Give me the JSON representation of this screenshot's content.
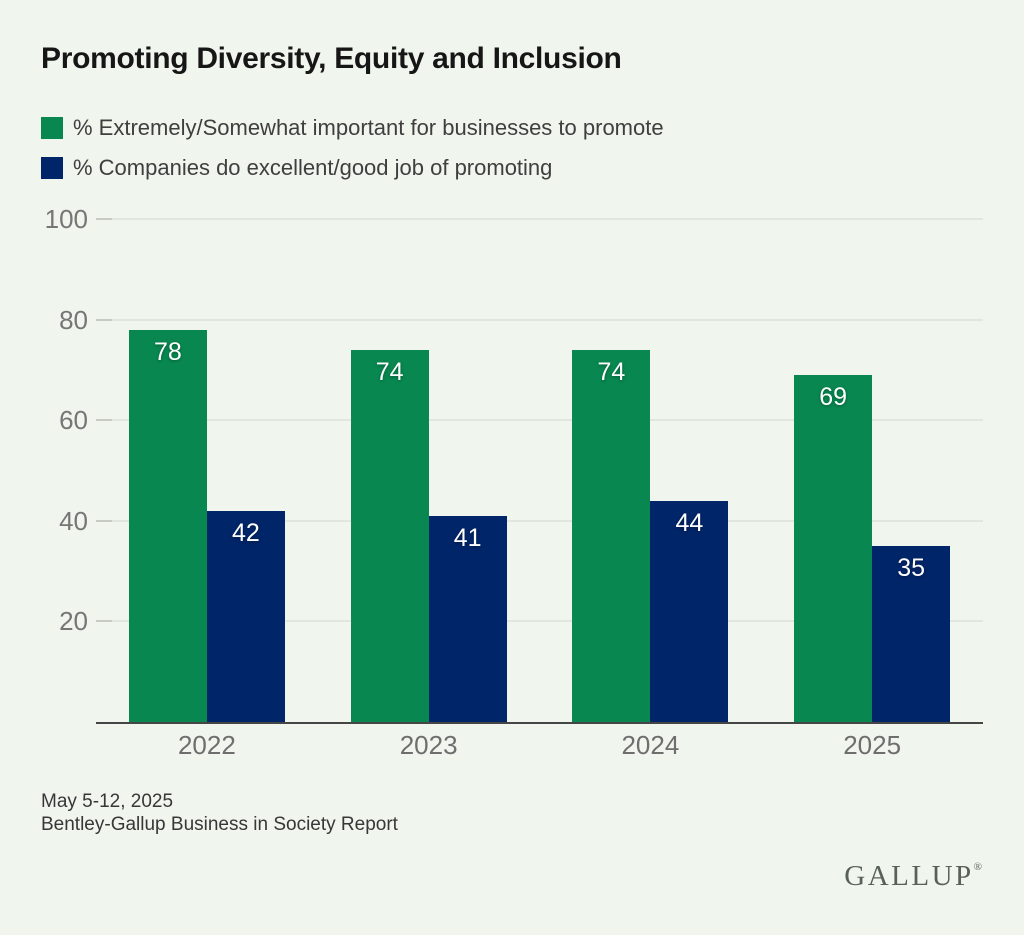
{
  "title": "Promoting Diversity, Equity and Inclusion",
  "legend": {
    "items": [
      {
        "label": "% Extremely/Somewhat important for businesses to promote",
        "color": "#088850"
      },
      {
        "label": "% Companies do excellent/good job of promoting",
        "color": "#002569"
      }
    ]
  },
  "chart_data": {
    "type": "bar",
    "title": "Promoting Diversity, Equity and Inclusion",
    "categories": [
      "2022",
      "2023",
      "2024",
      "2025"
    ],
    "series": [
      {
        "name": "% Extremely/Somewhat important for businesses to promote",
        "color": "#088850",
        "values": [
          78,
          74,
          74,
          69
        ]
      },
      {
        "name": "% Companies do excellent/good job of promoting",
        "color": "#002569",
        "values": [
          42,
          41,
          44,
          35
        ]
      }
    ],
    "ylim": [
      0,
      100
    ],
    "yticks": [
      20,
      40,
      60,
      80,
      100
    ],
    "grid": true,
    "legend_position": "top-left",
    "value_labels": "inside-top",
    "xlabel": "",
    "ylabel": ""
  },
  "footer": {
    "date_line": "May 5-12, 2025",
    "source_line": "Bentley-Gallup Business in Society Report"
  },
  "branding": {
    "wordmark": "GALLUP",
    "registered_mark": "®"
  },
  "colors": {
    "background": "#f0f5ee",
    "series_green": "#088850",
    "series_navy": "#002569",
    "gridline": "#e1e6de",
    "axis_line": "#454545",
    "axis_text": "#767676"
  }
}
